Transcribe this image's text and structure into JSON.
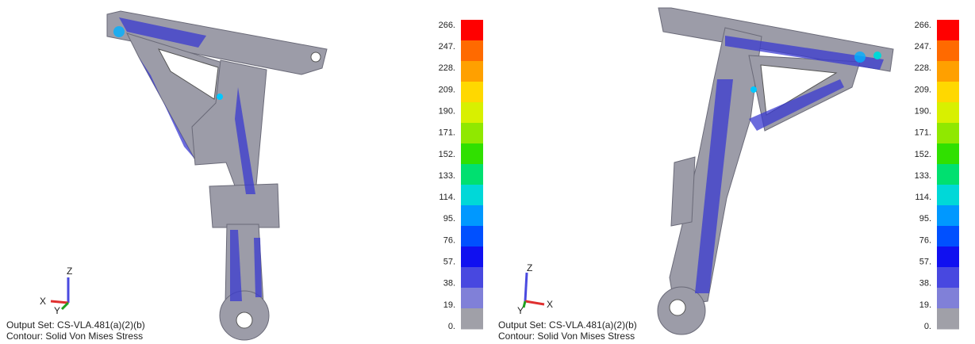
{
  "panels": [
    {
      "legend": {
        "labels": [
          "266.",
          "247.",
          "228.",
          "209.",
          "190.",
          "171.",
          "152.",
          "133.",
          "114.",
          "95.",
          "76.",
          "57.",
          "38.",
          "19.",
          "0."
        ],
        "colors": [
          "#ff0000",
          "#ff6a00",
          "#ffa000",
          "#ffd800",
          "#d8f000",
          "#90e800",
          "#30e000",
          "#00e070",
          "#00d8d8",
          "#0098ff",
          "#0050ff",
          "#1010f0",
          "#4848e0",
          "#8080d8",
          "#a0a0a8"
        ]
      },
      "triad": {
        "z": "Z",
        "x": "X",
        "y": "Y"
      },
      "output_set": "Output Set: CS-VLA.481(a)(2)(b)",
      "contour": "Contour: Solid Von Mises Stress"
    },
    {
      "legend": {
        "labels": [
          "266.",
          "247.",
          "228.",
          "209.",
          "190.",
          "171.",
          "152.",
          "133.",
          "114.",
          "95.",
          "76.",
          "57.",
          "38.",
          "19.",
          "0."
        ],
        "colors": [
          "#ff0000",
          "#ff6a00",
          "#ffa000",
          "#ffd800",
          "#d8f000",
          "#90e800",
          "#30e000",
          "#00e070",
          "#00d8d8",
          "#0098ff",
          "#0050ff",
          "#1010f0",
          "#4848e0",
          "#8080d8",
          "#a0a0a8"
        ]
      },
      "triad": {
        "z": "Z",
        "x": "X",
        "y": "Y"
      },
      "output_set": "Output Set: CS-VLA.481(a)(2)(b)",
      "contour": "Contour: Solid Von Mises Stress"
    }
  ]
}
